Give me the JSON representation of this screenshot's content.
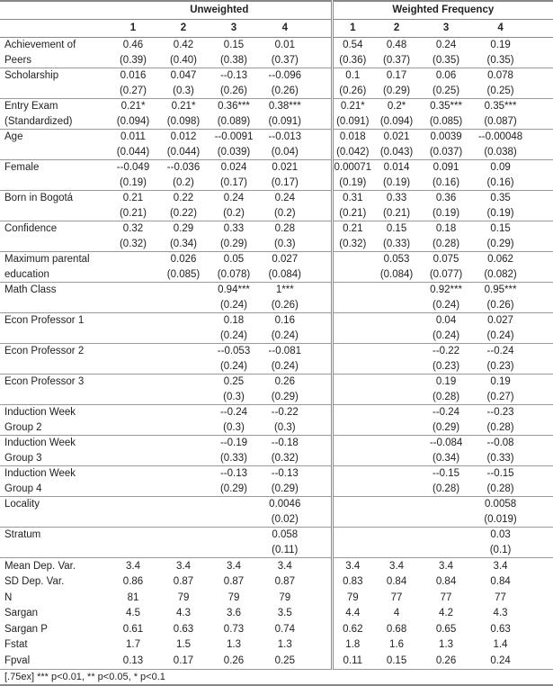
{
  "header": {
    "groups": [
      "Unweighted",
      "Weighted Frequency"
    ],
    "columns": [
      "1",
      "2",
      "3",
      "4",
      "1",
      "2",
      "3",
      "4"
    ]
  },
  "rows": [
    {
      "label": [
        "Achievement of",
        "Peers"
      ],
      "coef": [
        "0.46",
        "0.42",
        "0.15",
        "0.01",
        "0.54",
        "0.48",
        "0.24",
        "0.19"
      ],
      "se": [
        "(0.39)",
        "(0.40)",
        "(0.38)",
        "(0.37)",
        "(0.36)",
        "(0.37)",
        "(0.35)",
        "(0.35)"
      ]
    },
    {
      "label": [
        "Scholarship",
        ""
      ],
      "coef": [
        "0.016",
        "0.047",
        "--0.13",
        "--0.096",
        "0.1",
        "0.17",
        "0.06",
        "0.078"
      ],
      "se": [
        "(0.27)",
        "(0.3)",
        "(0.26)",
        "(0.26)",
        "(0.26)",
        "(0.29)",
        "(0.25)",
        "(0.25)"
      ]
    },
    {
      "label": [
        "Entry Exam",
        "(Standardized)"
      ],
      "coef": [
        "0.21*",
        "0.21*",
        "0.36***",
        "0.38***",
        "0.21*",
        "0.2*",
        "0.35***",
        "0.35***"
      ],
      "se": [
        "(0.094)",
        "(0.098)",
        "(0.089)",
        "(0.091)",
        "(0.091)",
        "(0.094)",
        "(0.085)",
        "(0.087)"
      ]
    },
    {
      "label": [
        "Age",
        ""
      ],
      "coef": [
        "0.011",
        "0.012",
        "--0.0091",
        "--0.013",
        "0.018",
        "0.021",
        "0.0039",
        "--0.00048"
      ],
      "se": [
        "(0.044)",
        "(0.044)",
        "(0.039)",
        "(0.04)",
        "(0.042)",
        "(0.043)",
        "(0.037)",
        "(0.038)"
      ]
    },
    {
      "label": [
        "Female",
        ""
      ],
      "coef": [
        "--0.049",
        "--0.036",
        "0.024",
        "0.021",
        "0.00071",
        "0.014",
        "0.091",
        "0.09"
      ],
      "se": [
        "(0.19)",
        "(0.2)",
        "(0.17)",
        "(0.17)",
        "(0.19)",
        "(0.19)",
        "(0.16)",
        "(0.16)"
      ]
    },
    {
      "label": [
        "Born in Bogotá",
        ""
      ],
      "coef": [
        "0.21",
        "0.22",
        "0.24",
        "0.24",
        "0.31",
        "0.33",
        "0.36",
        "0.35"
      ],
      "se": [
        "(0.21)",
        "(0.22)",
        "(0.2)",
        "(0.2)",
        "(0.21)",
        "(0.21)",
        "(0.19)",
        "(0.19)"
      ]
    },
    {
      "label": [
        "Confidence",
        ""
      ],
      "coef": [
        "0.32",
        "0.29",
        "0.33",
        "0.28",
        "0.21",
        "0.15",
        "0.18",
        "0.15"
      ],
      "se": [
        "(0.32)",
        "(0.34)",
        "(0.29)",
        "(0.3)",
        "(0.32)",
        "(0.33)",
        "(0.28)",
        "(0.29)"
      ]
    },
    {
      "label": [
        "Maximum parental",
        "education"
      ],
      "coef": [
        "",
        "0.026",
        "0.05",
        "0.027",
        "",
        "0.053",
        "0.075",
        "0.062"
      ],
      "se": [
        "",
        "(0.085)",
        "(0.078)",
        "(0.084)",
        "",
        "(0.084)",
        "(0.077)",
        "(0.082)"
      ]
    },
    {
      "label": [
        "Math Class",
        ""
      ],
      "coef": [
        "",
        "",
        "0.94***",
        "1***",
        "",
        "",
        "0.92***",
        "0.95***"
      ],
      "se": [
        "",
        "",
        "(0.24)",
        "(0.26)",
        "",
        "",
        "(0.24)",
        "(0.26)"
      ]
    },
    {
      "label": [
        "Econ Professor 1",
        ""
      ],
      "coef": [
        "",
        "",
        "0.18",
        "0.16",
        "",
        "",
        "0.04",
        "0.027"
      ],
      "se": [
        "",
        "",
        "(0.24)",
        "(0.24)",
        "",
        "",
        "(0.24)",
        "(0.24)"
      ]
    },
    {
      "label": [
        "Econ Professor 2",
        ""
      ],
      "coef": [
        "",
        "",
        "--0.053",
        "--0.081",
        "",
        "",
        "--0.22",
        "--0.24"
      ],
      "se": [
        "",
        "",
        "(0.24)",
        "(0.24)",
        "",
        "",
        "(0.23)",
        "(0.23)"
      ]
    },
    {
      "label": [
        "Econ Professor 3",
        ""
      ],
      "coef": [
        "",
        "",
        "0.25",
        "0.26",
        "",
        "",
        "0.19",
        "0.19"
      ],
      "se": [
        "",
        "",
        "(0.3)",
        "(0.29)",
        "",
        "",
        "(0.28)",
        "(0.27)"
      ]
    },
    {
      "label": [
        "Induction Week",
        "Group 2"
      ],
      "coef": [
        "",
        "",
        "--0.24",
        "--0.22",
        "",
        "",
        "--0.24",
        "--0.23"
      ],
      "se": [
        "",
        "",
        "(0.3)",
        "(0.3)",
        "",
        "",
        "(0.29)",
        "(0.28)"
      ]
    },
    {
      "label": [
        "Induction Week",
        "Group 3"
      ],
      "coef": [
        "",
        "",
        "--0.19",
        "--0.18",
        "",
        "",
        "--0.084",
        "--0.08"
      ],
      "se": [
        "",
        "",
        "(0.33)",
        "(0.32)",
        "",
        "",
        "(0.34)",
        "(0.33)"
      ]
    },
    {
      "label": [
        "Induction Week",
        "Group 4"
      ],
      "coef": [
        "",
        "",
        "--0.13",
        "--0.13",
        "",
        "",
        "--0.15",
        "--0.15"
      ],
      "se": [
        "",
        "",
        "(0.29)",
        "(0.29)",
        "",
        "",
        "(0.28)",
        "(0.28)"
      ]
    },
    {
      "label": [
        "Locality",
        ""
      ],
      "coef": [
        "",
        "",
        "",
        "0.0046",
        "",
        "",
        "",
        "0.0058"
      ],
      "se": [
        "",
        "",
        "",
        "(0.02)",
        "",
        "",
        "",
        "(0.019)"
      ]
    },
    {
      "label": [
        "Stratum",
        ""
      ],
      "coef": [
        "",
        "",
        "",
        "0.058",
        "",
        "",
        "",
        "0.03"
      ],
      "se": [
        "",
        "",
        "",
        "(0.11)",
        "",
        "",
        "",
        "(0.1)"
      ]
    }
  ],
  "stats": [
    {
      "label": "Mean Dep. Var.",
      "values": [
        "3.4",
        "3.4",
        "3.4",
        "3.4",
        "3.4",
        "3.4",
        "3.4",
        "3.4"
      ]
    },
    {
      "label": "SD Dep. Var.",
      "values": [
        "0.86",
        "0.87",
        "0.87",
        "0.87",
        "0.83",
        "0.84",
        "0.84",
        "0.84"
      ]
    },
    {
      "label": "N",
      "values": [
        "81",
        "79",
        "79",
        "79",
        "79",
        "77",
        "77",
        "77"
      ]
    },
    {
      "label": "Sargan",
      "values": [
        "4.5",
        "4.3",
        "3.6",
        "3.5",
        "4.4",
        "4",
        "4.2",
        "4.3"
      ]
    },
    {
      "label": "Sargan P",
      "values": [
        "0.61",
        "0.63",
        "0.73",
        "0.74",
        "0.62",
        "0.68",
        "0.65",
        "0.63"
      ]
    },
    {
      "label": "Fstat",
      "values": [
        "1.7",
        "1.5",
        "1.3",
        "1.3",
        "1.8",
        "1.6",
        "1.3",
        "1.4"
      ]
    },
    {
      "label": "Fpval",
      "values": [
        "0.13",
        "0.17",
        "0.26",
        "0.25",
        "0.11",
        "0.15",
        "0.26",
        "0.24"
      ]
    }
  ],
  "footnote": "[.75ex] *** p<0.01, ** p<0.05, * p<0.1"
}
